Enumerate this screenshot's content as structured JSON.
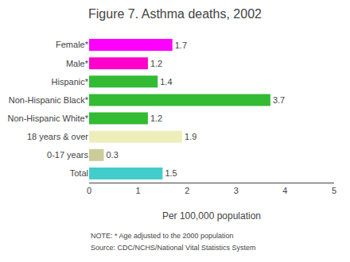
{
  "chart_data": {
    "type": "bar",
    "orientation": "horizontal",
    "title": "Figure 7. Asthma deaths, 2002",
    "categories": [
      "Female*",
      "Male*",
      "Hispanic*",
      "Non-Hispanic Black*",
      "Non-Hispanic White*",
      "18 years & over",
      "0-17 years",
      "Total"
    ],
    "values": [
      1.7,
      1.2,
      1.4,
      3.7,
      1.2,
      1.9,
      0.3,
      1.5
    ],
    "colors": [
      "#FF00FF",
      "#FF00CC",
      "#33BB33",
      "#33BB33",
      "#33BB33",
      "#EEEEBB",
      "#CCCC99",
      "#44CCCC"
    ],
    "xlabel": "Per 100,000 population",
    "xlim": [
      0,
      5
    ],
    "xticks": [
      0,
      1,
      2,
      3,
      4,
      5
    ],
    "data_labels": true,
    "grid": false,
    "annotations": [
      "NOTE: * Age adjusted to the 2000 population",
      "Source: CDC/NCHS/National Vital Statistics System"
    ]
  }
}
